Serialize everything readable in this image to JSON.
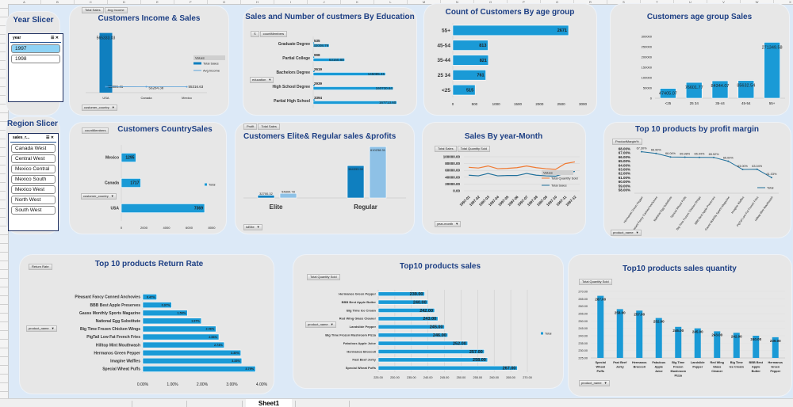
{
  "sheet": {
    "columns": [
      "A",
      "B",
      "C",
      "D",
      "E",
      "F",
      "G",
      "H",
      "I",
      "J",
      "K",
      "L",
      "M",
      "N",
      "O",
      "P",
      "Q",
      "R",
      "S",
      "T",
      "U",
      "V",
      "W",
      "X"
    ],
    "active_tab": "Sheet1"
  },
  "colors": {
    "bar": "#1a9ad6",
    "bar_dark": "#0f7fbf",
    "bar_light": "#8ec1e6",
    "line_orange": "#f07a32",
    "line_blue": "#1f6f9a",
    "title": "#1d3f84",
    "card": "#e7e7e7",
    "background": "#dce9f7"
  },
  "year_slicer": {
    "title": "Year Slicer",
    "header": "year",
    "items": [
      {
        "label": "1997",
        "selected": true
      },
      {
        "label": "1998",
        "selected": false
      }
    ]
  },
  "region_slicer": {
    "title": "Region Slicer",
    "header": "sales_r...",
    "items": [
      {
        "label": "Canada West"
      },
      {
        "label": "Central West"
      },
      {
        "label": "Mexico Central"
      },
      {
        "label": "Mexico South"
      },
      {
        "label": "Mexico West"
      },
      {
        "label": "North West"
      },
      {
        "label": "South West"
      }
    ]
  },
  "pivots": {
    "income": {
      "buttons": [
        "Total Sales",
        "Avg Income"
      ],
      "field": "customer_country",
      "legend_title": "Values"
    },
    "education": {
      "buttons": [
        "S",
        "countMembers"
      ],
      "field": "education"
    },
    "country": {
      "buttons": [
        "countMembers"
      ],
      "field": "customer_country",
      "legend": "Total"
    },
    "elite": {
      "buttons": [
        "Profit",
        "Total Sales"
      ],
      "field": "isElite"
    },
    "month": {
      "buttons": [
        "Total Sales",
        "Total Quantity Sold"
      ],
      "field": "year-month",
      "legend_title": "Values"
    },
    "margin": {
      "buttons": [
        "ProductMargin%"
      ],
      "field": "product_name",
      "legend": "Total"
    },
    "return": {
      "buttons": [
        "Return Rate"
      ],
      "field": "product_name"
    },
    "top_sales": {
      "buttons": [
        "Total Quantity Sold"
      ],
      "field": "product_name",
      "legend": "Total"
    },
    "top_qty": {
      "buttons": [
        "Total Quantity Sold"
      ],
      "field": "product_name"
    }
  },
  "chart_data": [
    {
      "id": "income",
      "type": "bar",
      "title": "Customers Income & Sales",
      "categories": [
        "USA",
        "Canada",
        "Mexico"
      ],
      "series": [
        {
          "name": "Total Sales",
          "type": "bar",
          "values": [
            565333.03,
            null,
            null
          ],
          "labels": [
            "565333.03",
            null,
            null
          ]
        },
        {
          "name": "Avg Income",
          "type": "line",
          "values": [
            55886.41,
            56284.38,
            55316.63
          ],
          "labels": [
            "55886.41",
            "56284.38",
            "55316.63"
          ]
        }
      ],
      "ylim": [
        0,
        600000
      ],
      "legend": "right"
    },
    {
      "id": "education",
      "type": "bar",
      "orientation": "horizontal",
      "title": "Sales and Number of custmers By Education",
      "categories": [
        "Graduate Degree",
        "Partial College",
        "Bachelors Degree",
        "High School Degree",
        "Partial High School"
      ],
      "series": [
        {
          "name": "countMembers",
          "values": [
            535,
            998,
            2619,
            2939,
            3394
          ],
          "labels": [
            "535",
            "998",
            "2619",
            "2939",
            "3394"
          ]
        },
        {
          "name": "S",
          "values": [
            32008.79,
            63150.8,
            145085.41,
            160730.64,
            167713.6
          ],
          "labels": [
            "32008.79",
            "63150.80",
            "145085.41",
            "160730.64",
            "167713.60"
          ]
        }
      ],
      "xlim": [
        0,
        180000
      ]
    },
    {
      "id": "age_count",
      "type": "bar",
      "orientation": "horizontal",
      "title": "Count of Customers By age group",
      "categories": [
        "55+",
        "45-54",
        "35-44",
        "25 34",
        "<25"
      ],
      "values": [
        2671,
        813,
        821,
        761,
        515
      ],
      "labels": [
        "2671",
        "813",
        "821",
        "761",
        "515"
      ],
      "xlim": [
        0,
        3000
      ],
      "xticks": [
        "0",
        "500",
        "1000",
        "1500",
        "2000",
        "2500",
        "3000"
      ]
    },
    {
      "id": "age_sales",
      "type": "bar",
      "title": "Customers age group Sales",
      "categories": [
        "<25",
        "25 34",
        "35-44",
        "45-54",
        "55+"
      ],
      "values": [
        47405.07,
        76601.77,
        84344.07,
        85632.54,
        271349.58
      ],
      "labels": [
        "47405.07",
        "76601.77",
        "84344.07",
        "85632.54",
        "271349.58"
      ],
      "ylim": [
        0,
        300000
      ],
      "yticks": [
        "0",
        "50000",
        "100000",
        "150000",
        "200000",
        "250000",
        "300000"
      ]
    },
    {
      "id": "country",
      "type": "bar",
      "orientation": "horizontal",
      "title": "Customers CountrySales",
      "categories": [
        "Mexico",
        "Canada",
        "USA"
      ],
      "values": [
        1295,
        1717,
        7369
      ],
      "labels": [
        "1295",
        "1717",
        "7369"
      ],
      "xlim": [
        0,
        8000
      ],
      "xticks": [
        "0",
        "2000",
        "4000",
        "6000",
        "8000"
      ],
      "legend": "right"
    },
    {
      "id": "elite",
      "type": "bar",
      "title": "Customers  Elite& Regular sales &profits",
      "categories": [
        "Elite",
        "Regular"
      ],
      "series": [
        {
          "name": "Profit",
          "values": [
            32700.32,
            384333.9
          ],
          "labels": [
            "32700.32",
            "384333.90"
          ]
        },
        {
          "name": "Total Sales",
          "values": [
            54894.78,
            610238.31
          ],
          "labels": [
            "54894.78",
            "610238.31"
          ]
        }
      ],
      "ylim": [
        0,
        640000
      ]
    },
    {
      "id": "month",
      "type": "line",
      "title": "Sales By year-Month",
      "categories": [
        "1997-01",
        "1997-02",
        "1997-03",
        "1997-04",
        "1997-05",
        "1997-06",
        "1997-07",
        "1997-08",
        "1997-09",
        "1997-10",
        "1997-11",
        "1997-12"
      ],
      "series": [
        {
          "name": "Total Quantity Sold",
          "values": [
            69000,
            67000,
            73000,
            65000,
            66000,
            68000,
            73000,
            68000,
            65000,
            63000,
            80000,
            85000
          ]
        },
        {
          "name": "Total Sales",
          "values": [
            46000,
            44000,
            51000,
            44000,
            45000,
            45000,
            51000,
            46000,
            44000,
            43000,
            52000,
            57000
          ]
        }
      ],
      "ylim": [
        0,
        100000
      ],
      "yticks": [
        "0.00",
        "20000.00",
        "40000.00",
        "60000.00",
        "80000.00",
        "100000.00"
      ],
      "grid": true,
      "legend": "right"
    },
    {
      "id": "margin",
      "type": "line",
      "title": "Top 10 products by profit margin",
      "categories": [
        "Hermanos Green Pepper",
        "Pleasant Fancy Canned Anchovies",
        "National Egg Substitute",
        "Special Wheat Puffs",
        "Big Time Frozen Chicken Wings",
        "BBB Best Apple Preserves",
        "Gauss Monthly Sports Magazine",
        "Imagine Waffles",
        "PigTail Low Fat French Fries",
        "Hilltop Mint Mouthwash"
      ],
      "values": [
        67.3,
        66.9,
        66.04,
        65.98,
        65.94,
        65.92,
        65.0,
        63.0,
        63.04,
        61.03
      ],
      "labels": [
        "67.30%",
        "66.90%",
        "66.04%",
        "65.98%",
        "65.94%",
        "65.92%",
        "65.00%",
        "63.00%",
        "63.04%",
        "61.03%"
      ],
      "ylim": [
        58,
        68
      ],
      "yticks": [
        "58.00%",
        "59.00%",
        "60.00%",
        "61.00%",
        "62.00%",
        "63.00%",
        "64.00%",
        "65.00%",
        "66.00%",
        "67.00%",
        "68.00%"
      ],
      "legend": "right"
    },
    {
      "id": "return",
      "type": "bar",
      "orientation": "horizontal",
      "title": "Top 10 products Return Rate",
      "categories": [
        "Pleasant Fancy Canned Anchovies",
        "BBB Best Apple Preserves",
        "Gauss Monthly Sports Magazine",
        "National Egg Substitute",
        "Big Time Frozen Chicken Wings",
        "PigTail Low Fat French Fries",
        "Hilltop Mint Mouthwash",
        "Hermanos Green Pepper",
        "Imagine Waffles",
        "Special Wheat Puffs"
      ],
      "values": [
        0.47,
        0.97,
        1.5,
        1.97,
        2.46,
        2.56,
        2.74,
        3.3,
        3.33,
        3.79
      ],
      "labels": [
        "0.47%",
        "0.97%",
        "1.50%",
        "1.97%",
        "2.46%",
        "2.56%",
        "2.74%",
        "3.30%",
        "3.33%",
        "3.79%"
      ],
      "xlim": [
        0,
        4
      ],
      "xticks": [
        "0.00%",
        "1.00%",
        "2.00%",
        "3.00%",
        "4.00%"
      ]
    },
    {
      "id": "top_sales",
      "type": "bar",
      "orientation": "horizontal",
      "title": "Top10 products sales",
      "categories": [
        "Hermanos Green Pepper",
        "BBB Best Apple Butter",
        "Big Time Ice Cream",
        "Red Wing Glass Cleaner",
        "Landslide Pepper",
        "Big Time Frozen Mushroom Pizza",
        "Fabulous Apple Juice",
        "Hermanos Broccoli",
        "Fast Beef Jerky",
        "Special Wheat Puffs"
      ],
      "values": [
        239,
        240,
        242,
        243,
        245,
        246,
        252,
        257,
        258,
        267
      ],
      "labels": [
        "239.00",
        "240.00",
        "242.00",
        "243.00",
        "245.00",
        "246.00",
        "252.00",
        "257.00",
        "258.00",
        "267.00"
      ],
      "xlim": [
        225,
        270
      ],
      "xticks": [
        "225.00",
        "230.00",
        "235.00",
        "240.00",
        "245.00",
        "250.00",
        "255.00",
        "260.00",
        "265.00",
        "270.00"
      ],
      "grid": true,
      "legend": "right"
    },
    {
      "id": "top_qty",
      "type": "bar",
      "title": "Top10 products sales quantity",
      "categories": [
        "Special Wheat Puffs",
        "Fast Beef Jerky",
        "Hermanos Broccoli",
        "Fabulous Apple Juice",
        "Big Time Frozen Mushroom Pizza",
        "Landslide Pepper",
        "Red Wing Glass Cleaner",
        "Big Time Ice Cream",
        "BBB Best Apple Butter",
        "Hermanos Green Pepper"
      ],
      "values": [
        267,
        258,
        257,
        252,
        246,
        245,
        243,
        242,
        240,
        239
      ],
      "labels": [
        "267.00",
        "258.00",
        "257.00",
        "252.00",
        "246.00",
        "245.00",
        "243.00",
        "242.00",
        "240.00",
        "239.00"
      ],
      "ylim": [
        225,
        270
      ],
      "yticks": [
        "225.00",
        "230.00",
        "235.00",
        "240.00",
        "245.00",
        "250.00",
        "255.00",
        "260.00",
        "265.00",
        "270.00"
      ],
      "grid": true
    }
  ]
}
